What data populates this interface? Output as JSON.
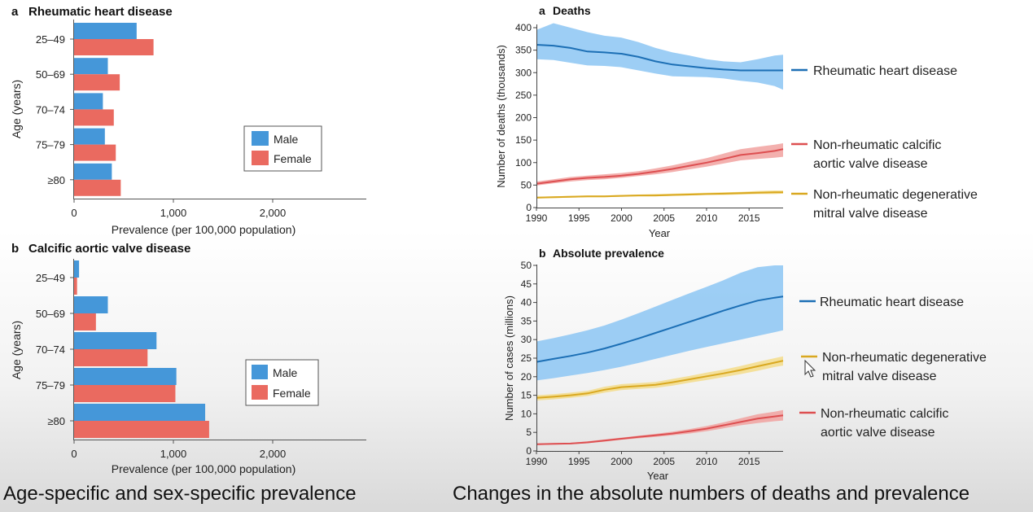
{
  "captions": {
    "left": "Age-specific and sex-specific prevalence",
    "right": "Changes in the absolute numbers of deaths and prevalence"
  },
  "colors": {
    "male": "#4597d9",
    "female": "#ea6a60",
    "rhd_line": "#1c6fb5",
    "rhd_band": "#8cc6f3",
    "cavd_line": "#dd4f51",
    "cavd_band": "#f1a2a0",
    "dmvd_line": "#d9a820",
    "dmvd_band": "#f3dc8a"
  },
  "chart_data": [
    {
      "id": "bar-rhd",
      "type": "bar",
      "orientation": "horizontal",
      "panel_letter": "a",
      "title": "Rheumatic heart disease",
      "categories": [
        "25–49",
        "50–69",
        "70–74",
        "75–79",
        "≥80"
      ],
      "series": [
        {
          "name": "Male",
          "values": [
            630,
            340,
            290,
            310,
            380
          ]
        },
        {
          "name": "Female",
          "values": [
            800,
            460,
            400,
            420,
            470
          ]
        }
      ],
      "xlabel": "Prevalence (per 100,000 population)",
      "ylabel": "Age (years)",
      "xlim": [
        0,
        2900
      ],
      "xticks": [
        0,
        1000,
        2000
      ],
      "xtick_labels": [
        "0",
        "1,000",
        "2,000"
      ],
      "legend": [
        "Male",
        "Female"
      ],
      "legend_position": "right"
    },
    {
      "id": "bar-cavd",
      "type": "bar",
      "orientation": "horizontal",
      "panel_letter": "b",
      "title": "Calcific aortic valve disease",
      "categories": [
        "25–49",
        "50–69",
        "70–74",
        "75–79",
        "≥80"
      ],
      "series": [
        {
          "name": "Male",
          "values": [
            50,
            340,
            830,
            1030,
            1320
          ]
        },
        {
          "name": "Female",
          "values": [
            30,
            220,
            740,
            1020,
            1360
          ]
        }
      ],
      "xlabel": "Prevalence (per 100,000 population)",
      "ylabel": "Age (years)",
      "xlim": [
        0,
        2900
      ],
      "xticks": [
        0,
        1000,
        2000
      ],
      "xtick_labels": [
        "0",
        "1,000",
        "2,000"
      ],
      "legend": [
        "Male",
        "Female"
      ],
      "legend_position": "right"
    },
    {
      "id": "line-deaths",
      "type": "line",
      "panel_letter": "a",
      "title": "Deaths",
      "xlabel": "Year",
      "ylabel": "Number of deaths (thousands)",
      "xlim": [
        1990,
        2019
      ],
      "ylim": [
        0,
        400
      ],
      "xticks": [
        1990,
        1995,
        2000,
        2005,
        2010,
        2015
      ],
      "yticks": [
        0,
        50,
        100,
        150,
        200,
        250,
        300,
        350,
        400
      ],
      "x": [
        1990,
        1992,
        1994,
        1996,
        1998,
        2000,
        2002,
        2004,
        2006,
        2008,
        2010,
        2012,
        2014,
        2016,
        2018,
        2019
      ],
      "series": [
        {
          "name": "Rheumatic heart disease",
          "color_key": "rhd",
          "values": [
            362,
            360,
            355,
            347,
            345,
            342,
            335,
            325,
            318,
            314,
            310,
            307,
            305,
            305,
            305,
            305
          ],
          "lower": [
            330,
            328,
            322,
            316,
            315,
            312,
            305,
            298,
            292,
            291,
            290,
            287,
            282,
            278,
            270,
            262
          ],
          "upper": [
            395,
            410,
            400,
            390,
            382,
            378,
            368,
            355,
            345,
            338,
            330,
            325,
            323,
            330,
            338,
            340
          ]
        },
        {
          "name": "Non-rheumatic calcific aortic valve disease",
          "label_lines": [
            "Non-rheumatic calcific",
            "aortic valve disease"
          ],
          "color_key": "cavd",
          "values": [
            53,
            58,
            63,
            66,
            68,
            71,
            75,
            80,
            86,
            93,
            100,
            108,
            117,
            121,
            126,
            130
          ],
          "lower": [
            49,
            54,
            58,
            61,
            63,
            66,
            70,
            74,
            79,
            85,
            91,
            98,
            105,
            108,
            111,
            113
          ],
          "upper": [
            58,
            63,
            68,
            71,
            74,
            77,
            81,
            87,
            94,
            102,
            110,
            120,
            130,
            135,
            140,
            143
          ]
        },
        {
          "name": "Non-rheumatic degenerative mitral valve disease",
          "label_lines": [
            "Non-rheumatic degenerative",
            "mitral valve disease"
          ],
          "color_key": "dmvd",
          "values": [
            22,
            23,
            24,
            25,
            25,
            26,
            27,
            27,
            28,
            29,
            30,
            31,
            32,
            33,
            34,
            34
          ],
          "lower": [
            20,
            21,
            22,
            23,
            23,
            24,
            25,
            25,
            26,
            27,
            28,
            28,
            29,
            30,
            30,
            31
          ],
          "upper": [
            24,
            25,
            26,
            27,
            27,
            28,
            29,
            30,
            31,
            32,
            33,
            34,
            35,
            37,
            38,
            38
          ]
        }
      ]
    },
    {
      "id": "line-prevalence",
      "type": "line",
      "panel_letter": "b",
      "title": "Absolute prevalence",
      "xlabel": "Year",
      "ylabel": "Number of cases (millions)",
      "xlim": [
        1990,
        2019
      ],
      "ylim": [
        0,
        50
      ],
      "xticks": [
        1990,
        1995,
        2000,
        2005,
        2010,
        2015
      ],
      "yticks": [
        0,
        5,
        10,
        15,
        20,
        25,
        30,
        35,
        40,
        45,
        50
      ],
      "x": [
        1990,
        1992,
        1994,
        1996,
        1998,
        2000,
        2002,
        2004,
        2006,
        2008,
        2010,
        2012,
        2014,
        2016,
        2018,
        2019
      ],
      "series": [
        {
          "name": "Rheumatic heart disease",
          "color_key": "rhd",
          "values": [
            24,
            24.8,
            25.6,
            26.5,
            27.6,
            28.9,
            30.3,
            31.8,
            33.3,
            34.8,
            36.3,
            37.8,
            39.2,
            40.5,
            41.3,
            41.6
          ],
          "lower": [
            19,
            19.6,
            20.3,
            21.0,
            21.8,
            22.7,
            23.7,
            24.8,
            25.9,
            27.0,
            28.0,
            29.0,
            30.0,
            31.0,
            32.0,
            32.5
          ],
          "upper": [
            29.5,
            30.4,
            31.4,
            32.5,
            33.8,
            35.4,
            37.1,
            38.9,
            40.7,
            42.5,
            44.2,
            46.0,
            48.0,
            49.5,
            50,
            50
          ]
        },
        {
          "name": "Non-rheumatic degenerative mitral valve disease",
          "label_lines": [
            "Non-rheumatic degenerative",
            "mitral valve disease"
          ],
          "color_key": "dmvd",
          "values": [
            14.3,
            14.6,
            15.0,
            15.5,
            16.5,
            17.2,
            17.5,
            17.8,
            18.5,
            19.3,
            20.1,
            20.9,
            21.8,
            22.8,
            23.8,
            24.3
          ],
          "lower": [
            13.6,
            13.9,
            14.3,
            14.8,
            15.7,
            16.4,
            16.7,
            17.0,
            17.6,
            18.4,
            19.1,
            19.9,
            20.7,
            21.6,
            22.6,
            23.0
          ],
          "upper": [
            15.0,
            15.3,
            15.7,
            16.2,
            17.3,
            18.0,
            18.3,
            18.6,
            19.4,
            20.2,
            21.1,
            21.9,
            22.9,
            24.0,
            25.0,
            25.5
          ]
        },
        {
          "name": "Non-rheumatic calcific aortic valve disease",
          "label_lines": [
            "Non-rheumatic calcific",
            "aortic valve disease"
          ],
          "color_key": "cavd",
          "values": [
            1.8,
            1.9,
            2.0,
            2.3,
            2.8,
            3.3,
            3.8,
            4.2,
            4.7,
            5.3,
            6.0,
            6.9,
            7.8,
            8.7,
            9.3,
            9.6
          ],
          "lower": [
            1.6,
            1.7,
            1.8,
            2.1,
            2.5,
            3.0,
            3.4,
            3.8,
            4.2,
            4.7,
            5.3,
            6.1,
            6.9,
            7.5,
            8.0,
            8.2
          ],
          "upper": [
            2.0,
            2.1,
            2.2,
            2.6,
            3.1,
            3.6,
            4.1,
            4.6,
            5.2,
            5.9,
            6.7,
            7.7,
            8.8,
            9.9,
            10.6,
            11.0
          ]
        }
      ]
    }
  ]
}
